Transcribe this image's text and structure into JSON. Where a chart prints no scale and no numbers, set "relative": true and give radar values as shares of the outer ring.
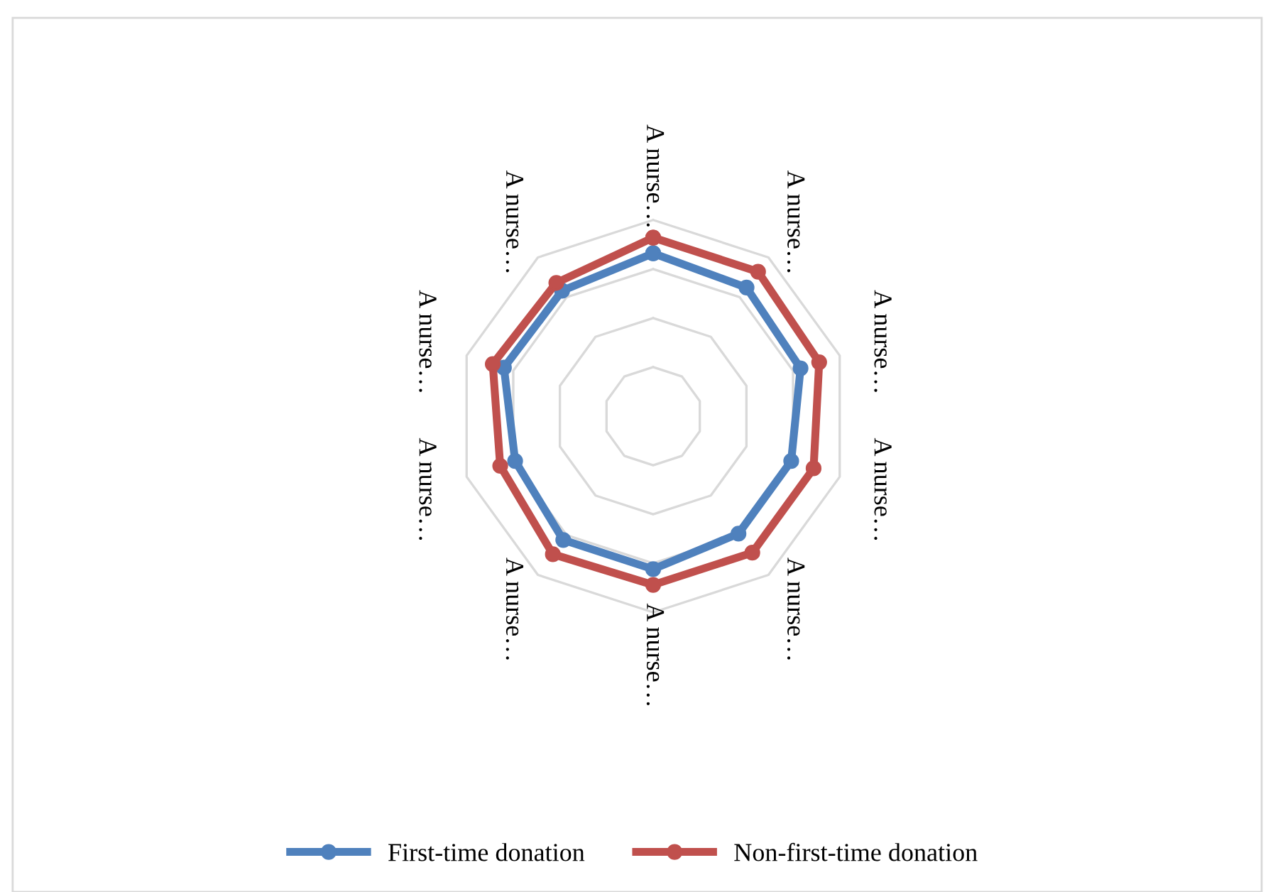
{
  "chart_data": {
    "type": "radar",
    "relative": true,
    "grid": true,
    "legend": "bottom",
    "marker": "circle",
    "line_style": "solid",
    "categories": [
      "A nurse…",
      "A nurse…",
      "A nurse…",
      "A nurse…",
      "A nurse…",
      "A nurse…",
      "A nurse…",
      "A nurse…",
      "A nurse…",
      "A nurse…"
    ],
    "series": [
      {
        "name": "First-time donation",
        "color": "#4f81bd",
        "values": [
          0.83,
          0.81,
          0.79,
          0.74,
          0.74,
          0.78,
          0.78,
          0.74,
          0.8,
          0.79
        ]
      },
      {
        "name": "Non-first-time donation",
        "color": "#c0504d",
        "values": [
          0.91,
          0.91,
          0.89,
          0.86,
          0.86,
          0.86,
          0.87,
          0.82,
          0.86,
          0.84
        ]
      }
    ]
  }
}
